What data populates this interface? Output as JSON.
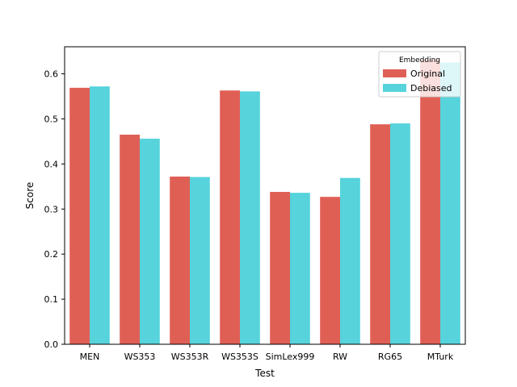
{
  "chart_data": {
    "type": "bar",
    "xlabel": "Test",
    "ylabel": "Score",
    "ylim": [
      0,
      0.66
    ],
    "yticks": [
      "0.0",
      "0.1",
      "0.2",
      "0.3",
      "0.4",
      "0.5",
      "0.6"
    ],
    "categories": [
      "MEN",
      "WS353",
      "WS353R",
      "WS353S",
      "SimLex999",
      "RW",
      "RG65",
      "MTurk"
    ],
    "series": [
      {
        "name": "Original",
        "color": "#e05f55",
        "values": [
          0.569,
          0.465,
          0.372,
          0.563,
          0.338,
          0.327,
          0.488,
          0.632
        ]
      },
      {
        "name": "Debiased",
        "color": "#56d3db",
        "values": [
          0.572,
          0.456,
          0.371,
          0.561,
          0.336,
          0.369,
          0.49,
          0.625
        ]
      }
    ],
    "legend": {
      "title": "Embedding",
      "placement": "top-right"
    },
    "grid": false
  }
}
